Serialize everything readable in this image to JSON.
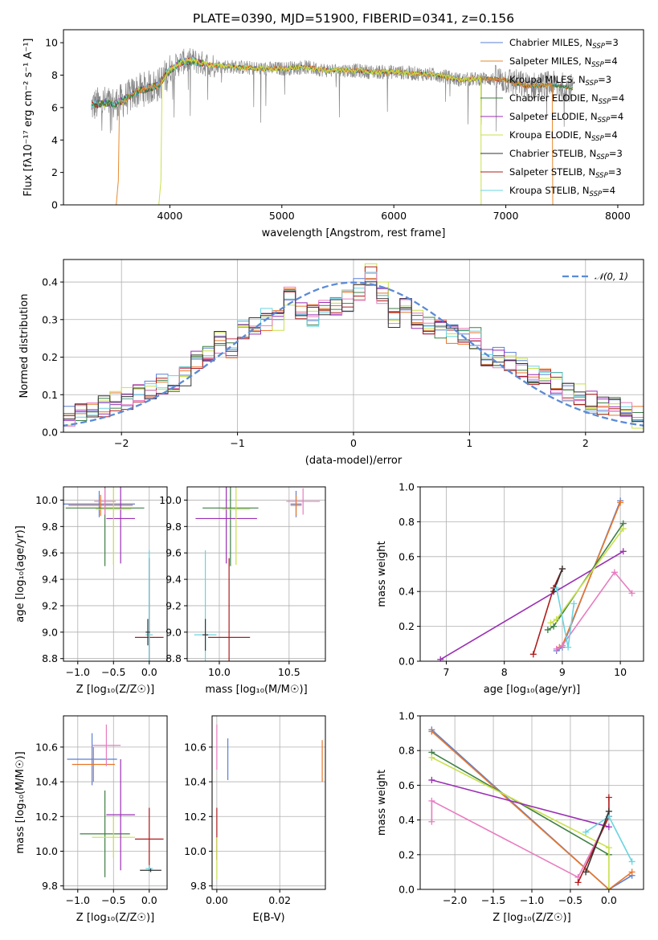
{
  "title": "PLATE=0390, MJD=51900, FIBERID=0341, z=0.156",
  "colors": {
    "Chabrier MILES": "#5a7fd6",
    "Salpeter MILES": "#e88a2e",
    "Kroupa MILES": "#e8762a",
    "Chabrier ELODIE": "#3f7f46",
    "Salpeter ELODIE": "#9a2fb3",
    "Kroupa ELODIE": "#c8e04a",
    "Chabrier STELIB": "#333333",
    "Salpeter STELIB": "#b01c1c",
    "Kroupa STELIB": "#6ad4e0",
    "pink": "#e87cc0",
    "data": "#888888"
  },
  "chart_data": [
    {
      "type": "line",
      "xlabel": "wavelength [Angstrom, rest frame]",
      "ylabel": "Flux [fλ10⁻¹⁷ erg cm⁻² s⁻¹ A⁻¹]",
      "xlim": [
        3050,
        8230
      ],
      "ylim": [
        0,
        10.8
      ],
      "xticks": [
        4000,
        5000,
        6000,
        7000,
        8000
      ],
      "yticks": [
        0,
        2,
        4,
        6,
        8,
        10
      ],
      "grid": false,
      "legend_position": "right",
      "legend": [
        "Chabrier MILES, N_SSP=3",
        "Salpeter MILES, N_SSP=4",
        "Kroupa MILES, N_SSP=3",
        "Chabrier ELODIE, N_SSP=4",
        "Salpeter ELODIE, N_SSP=4",
        "Kroupa ELODIE, N_SSP=4",
        "Chabrier STELIB, N_SSP=3",
        "Salpeter STELIB, N_SSP=3",
        "Kroupa STELIB, N_SSP=4"
      ],
      "legend_display": [
        {
          "pre": "Chabrier MILES, N",
          "sub": "SSP",
          "post": "=3"
        },
        {
          "pre": "Salpeter MILES, N",
          "sub": "SSP",
          "post": "=4"
        },
        {
          "pre": "Kroupa MILES, N",
          "sub": "SSP",
          "post": "=3"
        },
        {
          "pre": "Chabrier ELODIE, N",
          "sub": "SSP",
          "post": "=4"
        },
        {
          "pre": "Salpeter ELODIE, N",
          "sub": "SSP",
          "post": "=4"
        },
        {
          "pre": "Kroupa ELODIE, N",
          "sub": "SSP",
          "post": "=4"
        },
        {
          "pre": "Chabrier STELIB, N",
          "sub": "SSP",
          "post": "=3"
        },
        {
          "pre": "Salpeter STELIB, N",
          "sub": "SSP",
          "post": "=3"
        },
        {
          "pre": "Kroupa STELIB, N",
          "sub": "SSP",
          "post": "=4"
        }
      ],
      "series": {
        "model_envelope": {
          "x": [
            3300,
            3400,
            3500,
            3600,
            3700,
            3800,
            3900,
            4000,
            4100,
            4200,
            4300,
            4400,
            4600,
            4800,
            5000,
            5200,
            5400,
            5600,
            5800,
            6000,
            6200,
            6400,
            6600,
            6800,
            7000,
            7200,
            7400,
            7600
          ],
          "y": [
            6.1,
            6.3,
            6.2,
            6.5,
            7.0,
            7.2,
            7.4,
            8.3,
            8.8,
            8.9,
            8.7,
            8.6,
            8.5,
            8.4,
            8.4,
            8.5,
            8.3,
            8.3,
            8.2,
            8.2,
            8.1,
            8.0,
            7.7,
            7.8,
            7.7,
            7.3,
            7.4,
            7.2
          ]
        },
        "model_cutoffs": [
          {
            "name": "Salpeter MILES",
            "start": 3540,
            "end": 7420
          },
          {
            "name": "Kroupa ELODIE",
            "start": 3920,
            "end": 6780
          }
        ]
      }
    },
    {
      "type": "bar",
      "xlabel": "(data-model)/error",
      "ylabel": "Normed distribution",
      "xlim": [
        -2.5,
        2.5
      ],
      "ylim": [
        0,
        0.46
      ],
      "xticks": [
        -2,
        -1,
        0,
        1,
        2
      ],
      "yticks": [
        0.0,
        0.1,
        0.2,
        0.3,
        0.4
      ],
      "grid": true,
      "legend": [
        "𝒩(0, 1)"
      ],
      "legend_position": "top-right",
      "bin_width": 0.1,
      "x": [
        -2.5,
        -2.4,
        -2.3,
        -2.2,
        -2.1,
        -2.0,
        -1.9,
        -1.8,
        -1.7,
        -1.6,
        -1.5,
        -1.4,
        -1.3,
        -1.2,
        -1.1,
        -1.0,
        -0.9,
        -0.8,
        -0.7,
        -0.6,
        -0.5,
        -0.4,
        -0.3,
        -0.2,
        -0.1,
        0.0,
        0.1,
        0.2,
        0.3,
        0.4,
        0.5,
        0.6,
        0.7,
        0.8,
        0.9,
        1.0,
        1.1,
        1.2,
        1.3,
        1.4,
        1.5,
        1.6,
        1.7,
        1.8,
        1.9,
        2.0,
        2.1,
        2.2,
        2.3,
        2.4
      ],
      "histogram_base": [
        0.04,
        0.05,
        0.05,
        0.07,
        0.08,
        0.09,
        0.11,
        0.11,
        0.13,
        0.13,
        0.15,
        0.2,
        0.22,
        0.24,
        0.22,
        0.27,
        0.29,
        0.3,
        0.3,
        0.36,
        0.33,
        0.31,
        0.34,
        0.33,
        0.35,
        0.38,
        0.42,
        0.37,
        0.3,
        0.33,
        0.3,
        0.29,
        0.27,
        0.26,
        0.25,
        0.25,
        0.2,
        0.2,
        0.19,
        0.17,
        0.15,
        0.14,
        0.13,
        0.11,
        0.1,
        0.08,
        0.07,
        0.07,
        0.05,
        0.04
      ],
      "reference_curve": {
        "name": "𝒩(0, 1)",
        "mean": 0,
        "sigma": 1
      }
    },
    {
      "type": "scatter",
      "name": "age vs Z",
      "xlabel": "Z [log₁₀(Z/Z☉)]",
      "ylabel": "age  [log₁₀(age/yr)]",
      "xlim": [
        -1.2,
        0.25
      ],
      "ylim": [
        8.78,
        10.1
      ],
      "xticks": [
        -1.0,
        -0.5,
        0.0
      ],
      "yticks": [
        8.8,
        9.0,
        9.2,
        9.4,
        9.6,
        9.8,
        10.0
      ],
      "grid": true,
      "points": [
        {
          "series": "Chabrier MILES",
          "x": -0.7,
          "y": 9.97,
          "xerr": 0.5,
          "yerr": 0.1
        },
        {
          "series": "Kroupa MILES",
          "x": -0.68,
          "y": 9.96,
          "xerr": 0.45,
          "yerr": 0.08
        },
        {
          "series": "Chabrier ELODIE",
          "x": -0.62,
          "y": 9.94,
          "xerr": 0.55,
          "yerr": 0.44
        },
        {
          "series": "Salpeter ELODIE",
          "x": -0.4,
          "y": 9.86,
          "xerr": 0.2,
          "yerr": 0.34
        },
        {
          "series": "Kroupa ELODIE",
          "x": -0.5,
          "y": 9.93,
          "xerr": 0.25,
          "yerr": 0.42
        },
        {
          "series": "pink",
          "x": -0.62,
          "y": 9.99,
          "xerr": 0.15,
          "yerr": 0.1
        },
        {
          "series": "Salpeter STELIB",
          "x": 0.0,
          "y": 8.96,
          "xerr": 0.2,
          "yerr": 0.6
        },
        {
          "series": "Kroupa STELIB",
          "x": 0.0,
          "y": 8.98,
          "xerr": 0.05,
          "yerr": 0.64
        },
        {
          "series": "Chabrier STELIB",
          "x": -0.02,
          "y": 9.0,
          "xerr": 0.03,
          "yerr": 0.1
        }
      ]
    },
    {
      "type": "scatter",
      "name": "age vs mass",
      "xlabel": "mass [log₁₀(M/M☉)]",
      "ylabel": "",
      "xlim": [
        9.77,
        10.76
      ],
      "ylim": [
        8.78,
        10.1
      ],
      "xticks": [
        10.0,
        10.5
      ],
      "yticks": [
        8.8,
        9.0,
        9.2,
        9.4,
        9.6,
        9.8,
        10.0
      ],
      "grid": true,
      "points": [
        {
          "series": "Chabrier ELODIE",
          "x": 10.08,
          "y": 9.94,
          "xerr": 0.2,
          "yerr": 0.44
        },
        {
          "series": "Salpeter ELODIE",
          "x": 10.05,
          "y": 9.86,
          "xerr": 0.22,
          "yerr": 0.34
        },
        {
          "series": "Kroupa ELODIE",
          "x": 10.12,
          "y": 9.93,
          "xerr": 0.1,
          "yerr": 0.42
        },
        {
          "series": "Chabrier MILES",
          "x": 10.55,
          "y": 9.97,
          "xerr": 0.04,
          "yerr": 0.1
        },
        {
          "series": "Kroupa MILES",
          "x": 10.55,
          "y": 9.96,
          "xerr": 0.04,
          "yerr": 0.08
        },
        {
          "series": "pink",
          "x": 10.6,
          "y": 9.99,
          "xerr": 0.12,
          "yerr": 0.1
        },
        {
          "series": "Salpeter STELIB",
          "x": 10.07,
          "y": 8.96,
          "xerr": 0.15,
          "yerr": 0.6
        },
        {
          "series": "Kroupa STELIB",
          "x": 9.9,
          "y": 8.98,
          "xerr": 0.08,
          "yerr": 0.64
        },
        {
          "series": "Chabrier STELIB",
          "x": 9.9,
          "y": 8.98,
          "xerr": 0.02,
          "yerr": 0.12
        }
      ]
    },
    {
      "type": "line",
      "name": "mass weight vs age",
      "xlabel": "age  [log₁₀(age/yr)]",
      "ylabel": "mass weight",
      "xlim": [
        6.55,
        10.4
      ],
      "ylim": [
        0,
        1.0
      ],
      "xticks": [
        7,
        8,
        9,
        10
      ],
      "yticks": [
        0.0,
        0.2,
        0.4,
        0.6,
        0.8,
        1.0
      ],
      "grid": true,
      "series": [
        {
          "series": "Chabrier MILES",
          "x": [
            8.9,
            9.0,
            10.0
          ],
          "y": [
            0.06,
            0.08,
            0.92
          ]
        },
        {
          "series": "Kroupa MILES",
          "x": [
            8.95,
            9.0,
            10.0
          ],
          "y": [
            0.08,
            0.09,
            0.91
          ]
        },
        {
          "series": "Chabrier ELODIE",
          "x": [
            8.75,
            8.85,
            10.05
          ],
          "y": [
            0.18,
            0.2,
            0.79
          ]
        },
        {
          "series": "Salpeter ELODIE",
          "x": [
            6.9,
            10.05
          ],
          "y": [
            0.01,
            0.63
          ]
        },
        {
          "series": "Kroupa ELODIE",
          "x": [
            8.8,
            8.9,
            10.05
          ],
          "y": [
            0.22,
            0.24,
            0.76
          ]
        },
        {
          "series": "pink",
          "x": [
            8.9,
            9.0,
            9.9,
            10.2
          ],
          "y": [
            0.07,
            0.09,
            0.51,
            0.39
          ]
        },
        {
          "series": "Salpeter STELIB",
          "x": [
            8.5,
            8.85,
            9.0
          ],
          "y": [
            0.04,
            0.42,
            0.53
          ]
        },
        {
          "series": "Chabrier STELIB",
          "x": [
            8.85,
            9.0
          ],
          "y": [
            0.4,
            0.53
          ]
        },
        {
          "series": "Kroupa STELIB",
          "x": [
            8.9,
            9.1,
            9.2
          ],
          "y": [
            0.42,
            0.08,
            0.33
          ]
        }
      ]
    },
    {
      "type": "scatter",
      "name": "mass vs Z",
      "xlabel": "Z [log₁₀(Z/Z☉)]",
      "ylabel": "mass [log₁₀(M/M☉)]",
      "xlim": [
        -1.2,
        0.25
      ],
      "ylim": [
        9.78,
        10.78
      ],
      "xticks": [
        -1.0,
        -0.5,
        0.0
      ],
      "yticks": [
        9.8,
        10.0,
        10.2,
        10.4,
        10.6
      ],
      "grid": true,
      "points": [
        {
          "series": "Chabrier MILES",
          "x": -0.8,
          "y": 10.53,
          "xerr": 0.35,
          "yerr": 0.15
        },
        {
          "series": "Kroupa MILES",
          "x": -0.78,
          "y": 10.5,
          "xerr": 0.3,
          "yerr": 0.1
        },
        {
          "series": "pink",
          "x": -0.6,
          "y": 10.61,
          "xerr": 0.2,
          "yerr": 0.12
        },
        {
          "series": "Chabrier ELODIE",
          "x": -0.62,
          "y": 10.1,
          "xerr": 0.35,
          "yerr": 0.25
        },
        {
          "series": "Kroupa ELODIE",
          "x": -0.5,
          "y": 10.08,
          "xerr": 0.3,
          "yerr": 0.12
        },
        {
          "series": "Salpeter ELODIE",
          "x": -0.4,
          "y": 10.21,
          "xerr": 0.2,
          "yerr": 0.32
        },
        {
          "series": "Salpeter STELIB",
          "x": 0.0,
          "y": 10.07,
          "xerr": 0.2,
          "yerr": 0.18
        },
        {
          "series": "Kroupa STELIB",
          "x": 0.0,
          "y": 9.9,
          "xerr": 0.05,
          "yerr": 0.02
        },
        {
          "series": "Chabrier STELIB",
          "x": 0.02,
          "y": 9.89,
          "xerr": 0.15,
          "yerr": 0.01
        }
      ]
    },
    {
      "type": "scatter",
      "name": "mass vs E(B-V)",
      "xlabel": "E(B-V)",
      "ylabel": "",
      "xlim": [
        -0.0015,
        0.0345
      ],
      "ylim": [
        9.78,
        10.78
      ],
      "xticks": [
        0.0,
        0.02
      ],
      "yticks": [
        9.8,
        10.0,
        10.2,
        10.4,
        10.6
      ],
      "grid": true,
      "points": [
        {
          "series": "pink",
          "x": 0.0,
          "y": 10.6,
          "yerr": 0.13
        },
        {
          "series": "Salpeter STELIB",
          "x": 0.0,
          "y": 10.1,
          "yerr": 0.15
        },
        {
          "series": "Kroupa ELODIE",
          "x": 0.0,
          "y": 9.96,
          "yerr": 0.12
        },
        {
          "series": "Chabrier MILES",
          "x": 0.0035,
          "y": 10.53,
          "yerr": 0.12
        },
        {
          "series": "Kroupa MILES",
          "x": 0.0335,
          "y": 10.52,
          "yerr": 0.12
        }
      ]
    },
    {
      "type": "line",
      "name": "mass weight vs Z",
      "xlabel": "Z [log₁₀(Z/Z☉)]",
      "ylabel": "mass weight",
      "xlim": [
        -2.45,
        0.45
      ],
      "ylim": [
        0,
        1.0
      ],
      "xticks": [
        -2.0,
        -1.5,
        -1.0,
        -0.5,
        0.0
      ],
      "yticks": [
        0.0,
        0.2,
        0.4,
        0.6,
        0.8,
        1.0
      ],
      "grid": true,
      "series": [
        {
          "series": "Chabrier MILES",
          "x": [
            -2.3,
            0.0,
            0.3
          ],
          "y": [
            0.92,
            0.0,
            0.08
          ]
        },
        {
          "series": "Kroupa MILES",
          "x": [
            -2.3,
            0.0,
            0.3
          ],
          "y": [
            0.91,
            0.0,
            0.1
          ]
        },
        {
          "series": "Chabrier ELODIE",
          "x": [
            -2.3,
            0.0
          ],
          "y": [
            0.79,
            0.2
          ]
        },
        {
          "series": "Kroupa ELODIE",
          "x": [
            -2.3,
            0.0,
            0.0
          ],
          "y": [
            0.76,
            0.24,
            0.0
          ]
        },
        {
          "series": "Salpeter ELODIE",
          "x": [
            -2.3,
            0.0
          ],
          "y": [
            0.63,
            0.36
          ]
        },
        {
          "series": "pink",
          "x": [
            -2.3,
            -2.3,
            -0.4,
            0.0
          ],
          "y": [
            0.39,
            0.51,
            0.07,
            0.42
          ]
        },
        {
          "series": "Salpeter STELIB",
          "x": [
            -0.4,
            0.0,
            0.0
          ],
          "y": [
            0.04,
            0.42,
            0.53
          ]
        },
        {
          "series": "Kroupa STELIB",
          "x": [
            -0.3,
            0.0,
            0.3
          ],
          "y": [
            0.33,
            0.42,
            0.16
          ]
        },
        {
          "series": "Chabrier STELIB",
          "x": [
            -0.3,
            0.0
          ],
          "y": [
            0.1,
            0.45
          ]
        }
      ]
    }
  ]
}
